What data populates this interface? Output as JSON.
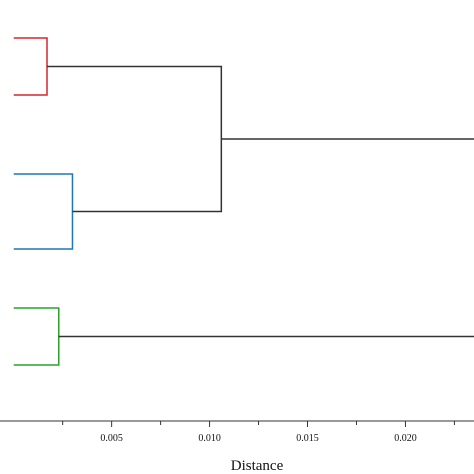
{
  "chart_data": {
    "type": "dendrogram",
    "orientation": "horizontal",
    "xlabel": "Distance",
    "xlim": [
      -0.0007,
      0.0235
    ],
    "ylim": [
      0,
      474
    ],
    "x_ticks": [
      0.005,
      0.01,
      0.015,
      0.02
    ],
    "x_tick_labels": [
      "0.005",
      "0.010",
      "0.015",
      "0.020"
    ],
    "x_minor_ticks": [
      0.0025,
      0.0075,
      0.0125,
      0.0175,
      0.0225
    ],
    "grid": false,
    "legend": "none",
    "leaf_colors": {
      "cluster1": "#d62728",
      "cluster2": "#1f77b4",
      "cluster3": "#2ca02c",
      "link": "#333333"
    },
    "merges": [
      {
        "name": "cluster1",
        "distance": 0.0017,
        "left": {
          "x": 0,
          "y": 38
        },
        "right": {
          "x": 0,
          "y": 95
        },
        "color": "#d62728"
      },
      {
        "name": "cluster2",
        "distance": 0.003,
        "left": {
          "x": 0,
          "y": 174
        },
        "right": {
          "x": 0,
          "y": 249
        },
        "color": "#1f77b4"
      },
      {
        "name": "cluster3",
        "distance": 0.0023,
        "left": {
          "x": 0,
          "y": 308
        },
        "right": {
          "x": 0,
          "y": 365
        },
        "color": "#2ca02c"
      },
      {
        "name": "link-1-2",
        "distance": 0.0106,
        "left": {
          "x": 0.0017,
          "y": 66.5
        },
        "right": {
          "x": 0.003,
          "y": 211.5
        },
        "color": "#333333"
      },
      {
        "name": "root",
        "distance": 0.024,
        "left": {
          "x": 0.0106,
          "y": 139
        },
        "right": {
          "x": 0.0023,
          "y": 336.5
        },
        "color": "#333333"
      }
    ]
  }
}
